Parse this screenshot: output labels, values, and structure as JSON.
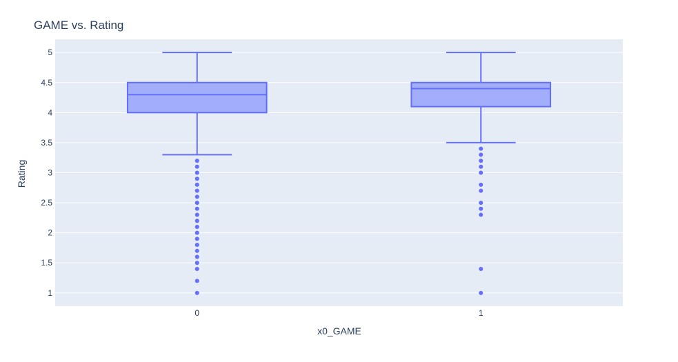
{
  "chart_data": {
    "type": "box",
    "title": "GAME vs. Rating",
    "xlabel": "x0_GAME",
    "ylabel": "Rating",
    "ylim": [
      0.78,
      5.22
    ],
    "yticks": [
      1,
      1.5,
      2,
      2.5,
      3,
      3.5,
      4,
      4.5,
      5
    ],
    "categories": [
      "0",
      "1"
    ],
    "grid": true,
    "legend": "none",
    "colors": {
      "plot_bg": "#e5ecf6",
      "grid": "#ffffff",
      "box_line": "#636efa",
      "box_fill": "#a3aefb",
      "text": "#2a3f5f"
    },
    "boxes": [
      {
        "category": "0",
        "lowerfence": 3.3,
        "q1": 4.0,
        "median": 4.3,
        "q3": 4.5,
        "upperfence": 5.0,
        "outliers": [
          3.2,
          3.1,
          3.0,
          2.9,
          2.8,
          2.7,
          2.6,
          2.5,
          2.4,
          2.3,
          2.2,
          2.1,
          2.0,
          1.9,
          1.8,
          1.7,
          1.6,
          1.5,
          1.4,
          1.2,
          1.0
        ]
      },
      {
        "category": "1",
        "lowerfence": 3.5,
        "q1": 4.1,
        "median": 4.4,
        "q3": 4.5,
        "upperfence": 5.0,
        "outliers": [
          3.4,
          3.3,
          3.2,
          3.1,
          3.0,
          2.8,
          2.7,
          2.5,
          2.4,
          2.3,
          1.4,
          1.0
        ]
      }
    ]
  }
}
